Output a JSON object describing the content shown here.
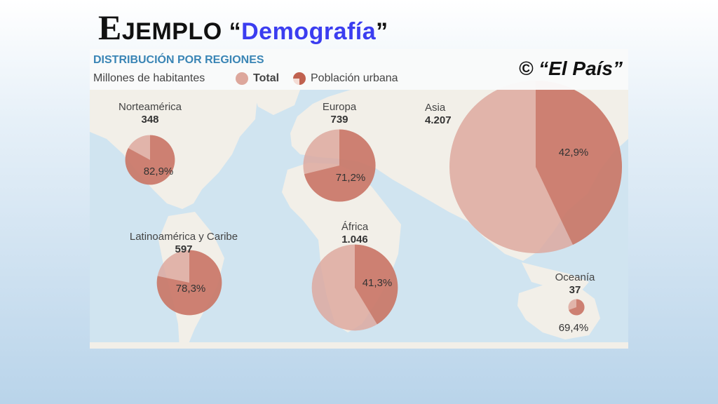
{
  "title": {
    "cap": "E",
    "rest": "JEMPLO ",
    "open_quote": "“",
    "word": "Demografía",
    "close_quote": "”"
  },
  "legend": {
    "title": "DISTRIBUCIÓN POR REGIONES",
    "units": "Millones de habitantes",
    "total_label": "Total",
    "urban_label": "Población urbana"
  },
  "credit": "© “El País”",
  "colors": {
    "total": "#dda79c",
    "urban": "#c0614f",
    "sea": "#d0e4f0",
    "land": "#f2efe8",
    "legend_title": "#3a85b5",
    "title_word": "#3b3df0"
  },
  "chart_data": {
    "type": "bubble-pie-map",
    "unit": "Millones de habitantes",
    "series_names": [
      "Total",
      "Población urbana"
    ],
    "regions": [
      {
        "name": "Norteamérica",
        "total_label": "348",
        "total": 348,
        "urban_pct": 82.9,
        "urban_label": "82,9%"
      },
      {
        "name": "Europa",
        "total_label": "739",
        "total": 739,
        "urban_pct": 71.2,
        "urban_label": "71,2%"
      },
      {
        "name": "Asia",
        "total_label": "4.207",
        "total": 4207,
        "urban_pct": 42.9,
        "urban_label": "42,9%"
      },
      {
        "name": "Latinoamérica y Caribe",
        "total_label": "597",
        "total": 597,
        "urban_pct": 78.3,
        "urban_label": "78,3%"
      },
      {
        "name": "África",
        "total_label": "1.046",
        "total": 1046,
        "urban_pct": 41.3,
        "urban_label": "41,3%"
      },
      {
        "name": "Oceanía",
        "total_label": "37",
        "total": 37,
        "urban_pct": 69.4,
        "urban_label": "69,4%"
      }
    ]
  }
}
